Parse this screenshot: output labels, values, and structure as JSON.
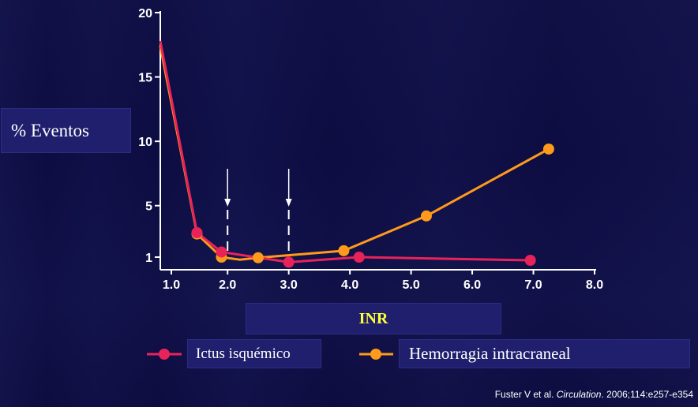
{
  "chart_data": {
    "type": "line",
    "xlabel": "INR",
    "ylabel": "% Eventos",
    "xlim": [
      0.9,
      8.0
    ],
    "ylim": [
      0,
      21
    ],
    "x_ticks": [
      "1.0",
      "2.0",
      "3.0",
      "4.0",
      "5.0",
      "6.0",
      "7.0",
      "8.0"
    ],
    "x_tick_values": [
      1,
      2,
      3,
      4,
      5,
      6,
      7,
      8
    ],
    "y_ticks": [
      "1",
      "5",
      "10",
      "15",
      "20"
    ],
    "y_tick_values": [
      1,
      5,
      10,
      15,
      20
    ],
    "series": [
      {
        "name": "Ictus isquémico",
        "color": "#e8235a",
        "points": [
          [
            0.9,
            17.8
          ],
          [
            1.5,
            2.9
          ],
          [
            1.9,
            1.4
          ],
          [
            3.0,
            0.6
          ],
          [
            4.15,
            1.0
          ],
          [
            6.95,
            0.75
          ]
        ],
        "markers": [
          [
            1.5,
            2.9
          ],
          [
            1.9,
            1.4
          ],
          [
            3.0,
            0.6
          ],
          [
            4.15,
            1.0
          ],
          [
            6.95,
            0.75
          ]
        ]
      },
      {
        "name": "Hemorragia intracraneal",
        "color": "#ff9a1a",
        "points": [
          [
            0.9,
            17.4
          ],
          [
            1.5,
            2.8
          ],
          [
            1.9,
            1.0
          ],
          [
            2.2,
            0.8
          ],
          [
            2.5,
            0.95
          ],
          [
            3.9,
            1.5
          ],
          [
            5.25,
            4.2
          ],
          [
            7.25,
            9.4
          ]
        ],
        "markers": [
          [
            1.5,
            2.8
          ],
          [
            1.9,
            1.0
          ],
          [
            2.5,
            0.95
          ],
          [
            3.9,
            1.5
          ],
          [
            5.25,
            4.2
          ],
          [
            7.25,
            9.4
          ]
        ]
      }
    ],
    "annotations": [
      {
        "type": "arrow-dashed",
        "x": 2.0
      },
      {
        "type": "arrow-dashed",
        "x": 3.0
      }
    ]
  },
  "legend": {
    "item1": "Ictus isquémico",
    "item2": "Hemorragia intracraneal"
  },
  "citation": {
    "authors": "Fuster V et al. ",
    "journal": "Circulation",
    "rest": ". 2006;114:e257-e354"
  },
  "colors": {
    "axis": "#ffffff",
    "background": "#0d0d45",
    "label_box": "#1f1f6e",
    "x_label_text": "#ffff33"
  }
}
